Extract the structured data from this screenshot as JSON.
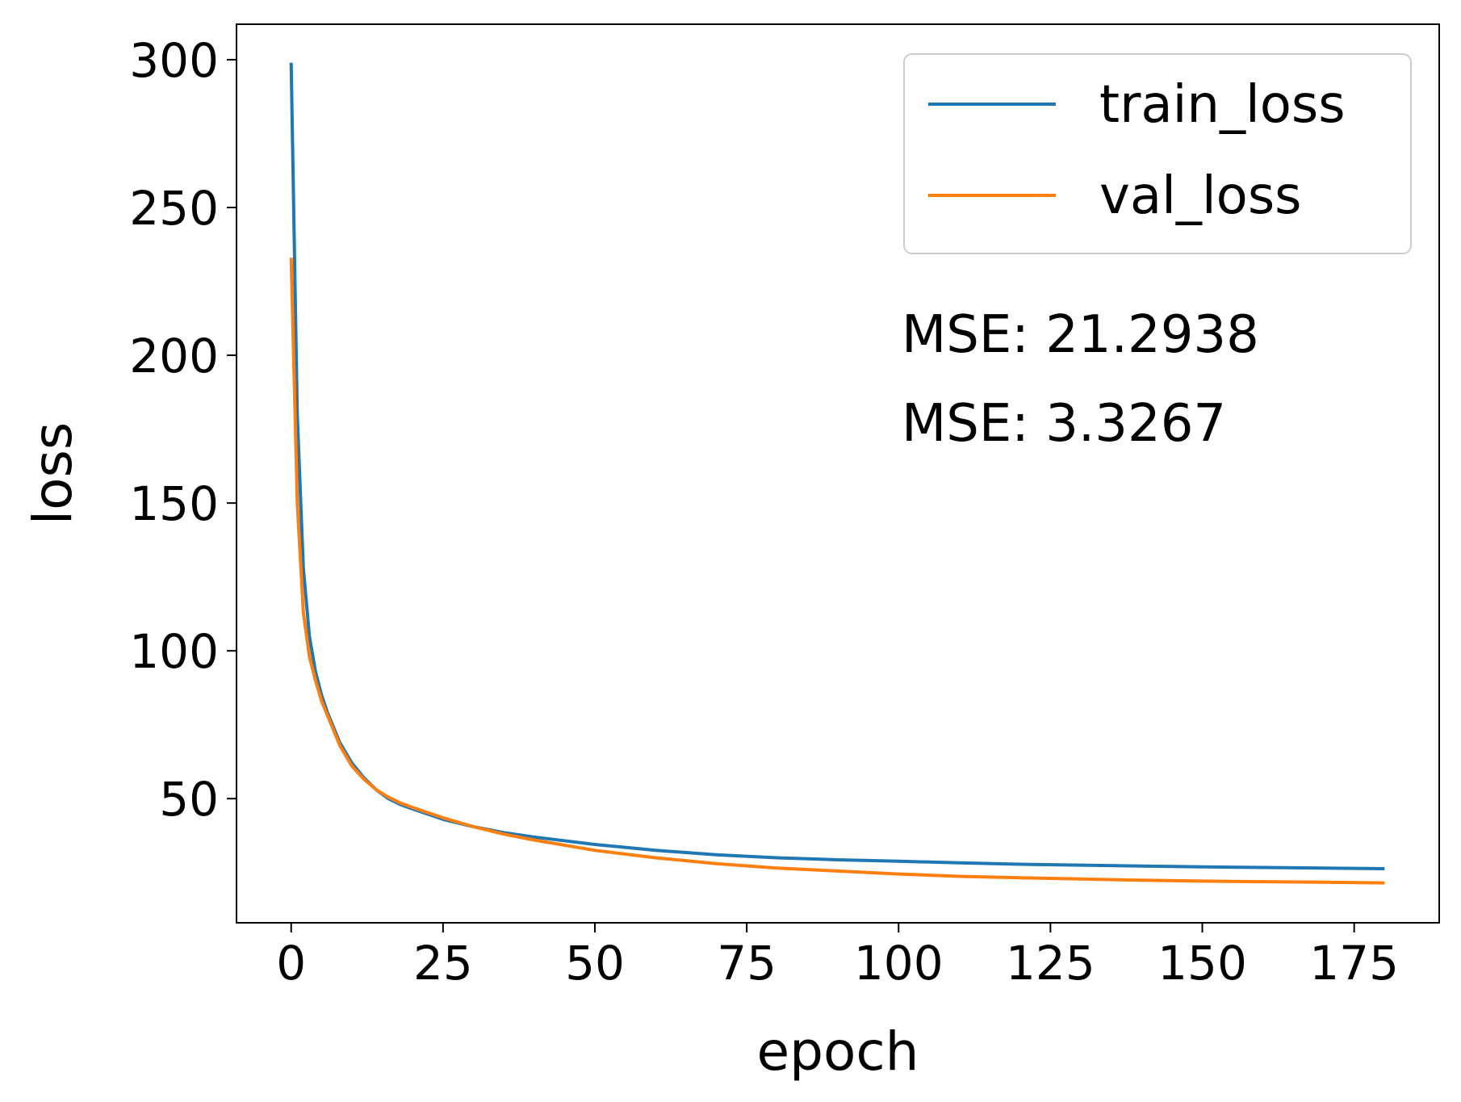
{
  "chart_data": {
    "type": "line",
    "title": "",
    "xlabel": "epoch",
    "ylabel": "loss",
    "xlim": [
      -9,
      189
    ],
    "ylim": [
      8,
      312
    ],
    "xticks": [
      0,
      25,
      50,
      75,
      100,
      125,
      150,
      175
    ],
    "yticks": [
      50,
      100,
      150,
      200,
      250,
      300
    ],
    "x_tick_labels": [
      "0",
      "25",
      "50",
      "75",
      "100",
      "125",
      "150",
      "175"
    ],
    "y_tick_labels": [
      "50",
      "100",
      "150",
      "200",
      "250",
      "300"
    ],
    "grid": false,
    "legend": {
      "position": "top-right",
      "entries": [
        "train_loss",
        "val_loss"
      ]
    },
    "annotations": [
      "MSE: 21.2938",
      "MSE: 3.3267"
    ],
    "colors": {
      "train_loss": "#1f77b4",
      "val_loss": "#ff7f0e"
    },
    "series": [
      {
        "name": "train_loss",
        "x": [
          0,
          1,
          2,
          3,
          4,
          5,
          6,
          8,
          10,
          12,
          14,
          16,
          18,
          20,
          25,
          30,
          35,
          40,
          50,
          60,
          70,
          80,
          90,
          100,
          110,
          120,
          130,
          140,
          150,
          160,
          170,
          180
        ],
        "y": [
          299,
          180,
          128,
          105,
          93,
          85,
          79,
          69,
          62,
          57,
          53,
          50,
          48,
          46.5,
          43,
          40.5,
          38.5,
          37,
          34.5,
          32.5,
          31,
          30,
          29.3,
          28.8,
          28.3,
          27.8,
          27.5,
          27.2,
          26.9,
          26.7,
          26.5,
          26.3
        ]
      },
      {
        "name": "val_loss",
        "x": [
          0,
          1,
          2,
          3,
          4,
          5,
          6,
          8,
          10,
          12,
          14,
          16,
          18,
          20,
          25,
          30,
          35,
          40,
          50,
          60,
          70,
          80,
          90,
          100,
          110,
          120,
          130,
          140,
          150,
          160,
          170,
          180
        ],
        "y": [
          233,
          150,
          113,
          98,
          90,
          83,
          78,
          68,
          61,
          56.5,
          53,
          50.5,
          48.5,
          47,
          43.5,
          40.5,
          38,
          36,
          32.5,
          30,
          28,
          26.5,
          25.5,
          24.5,
          23.7,
          23.2,
          22.8,
          22.4,
          22.1,
          21.9,
          21.7,
          21.5
        ]
      }
    ]
  }
}
